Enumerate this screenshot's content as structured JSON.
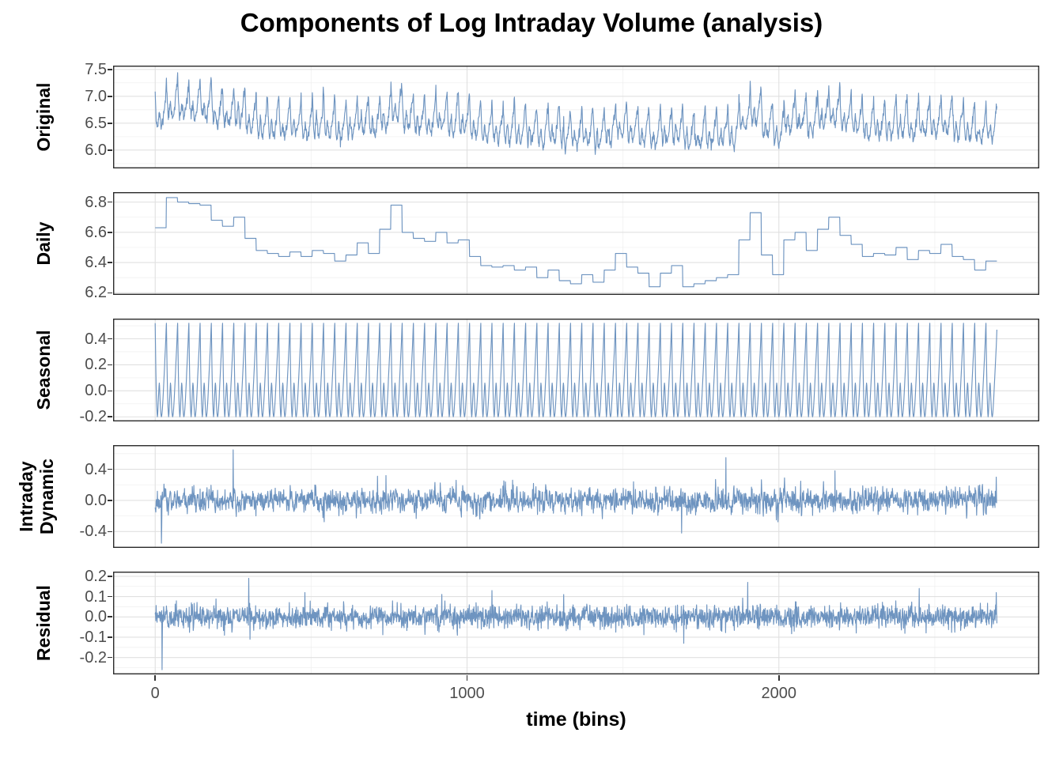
{
  "chart_data": {
    "type": "line",
    "title": "Components of Log Intraday Volume (analysis)",
    "xlabel": "time (bins)",
    "style": {
      "line_color": "#6E94C0",
      "panel_border_color": "#2b2b2b",
      "grid_major_color": "#e0e0e0",
      "grid_minor_color": "#f0f0f0",
      "tick_label_color": "#4d4d4d",
      "tick_mark_color": "#333333",
      "panel_background": "#ffffff"
    },
    "x": {
      "n_bins": 2700,
      "bins_per_day": 36,
      "lim": [
        -135,
        2835
      ],
      "ticks": [
        {
          "v": 0,
          "label": "0"
        },
        {
          "v": 1000,
          "label": "1000"
        },
        {
          "v": 2000,
          "label": "2000"
        }
      ],
      "minor": [
        500,
        1500,
        2500
      ],
      "grid": true
    },
    "daily_values": [
      6.63,
      6.83,
      6.8,
      6.79,
      6.78,
      6.68,
      6.64,
      6.7,
      6.56,
      6.48,
      6.46,
      6.44,
      6.47,
      6.44,
      6.48,
      6.46,
      6.41,
      6.45,
      6.53,
      6.46,
      6.62,
      6.78,
      6.6,
      6.56,
      6.54,
      6.6,
      6.53,
      6.55,
      6.44,
      6.38,
      6.37,
      6.38,
      6.35,
      6.37,
      6.3,
      6.35,
      6.28,
      6.26,
      6.32,
      6.27,
      6.35,
      6.46,
      6.37,
      6.33,
      6.24,
      6.33,
      6.38,
      6.24,
      6.26,
      6.28,
      6.3,
      6.32,
      6.55,
      6.73,
      6.45,
      6.32,
      6.55,
      6.6,
      6.48,
      6.62,
      6.7,
      6.58,
      6.52,
      6.44,
      6.46,
      6.45,
      6.5,
      6.42,
      6.48,
      6.46,
      6.52,
      6.44,
      6.42,
      6.35,
      6.41
    ],
    "seasonal_profile": [
      0.52,
      0.35,
      0.18,
      0.05,
      -0.05,
      -0.12,
      -0.17,
      -0.2,
      -0.18,
      -0.13,
      -0.07,
      -0.02,
      0.03,
      0.06,
      0.04,
      -0.02,
      -0.08,
      -0.13,
      -0.17,
      -0.19,
      -0.2,
      -0.19,
      -0.17,
      -0.14,
      -0.1,
      -0.06,
      -0.01,
      0.04,
      0.09,
      0.14,
      0.19,
      0.24,
      0.29,
      0.34,
      0.4,
      0.47
    ],
    "panels": [
      {
        "id": "original",
        "label_lines": [
          "Original"
        ],
        "series": "composite",
        "ylim": [
          5.66,
          7.57
        ],
        "yticks": [
          {
            "v": 6.0,
            "label": "6.0"
          },
          {
            "v": 6.5,
            "label": "6.5"
          },
          {
            "v": 7.0,
            "label": "7.0"
          },
          {
            "v": 7.5,
            "label": "7.5"
          }
        ],
        "noise": {
          "seed": 11,
          "phi": 0.3,
          "sd": 0.055
        },
        "spikes": [
          {
            "bin": 255,
            "v": 0.1
          },
          {
            "bin": 1310,
            "v": 0.28
          },
          {
            "bin": 1730,
            "v": -0.32
          },
          {
            "bin": 2120,
            "v": 0.26
          },
          {
            "bin": 2697,
            "v": 0.15
          }
        ]
      },
      {
        "id": "daily",
        "label_lines": [
          "Daily"
        ],
        "series": "daily_step",
        "ylim": [
          6.186,
          6.866
        ],
        "yticks": [
          {
            "v": 6.2,
            "label": "6.2"
          },
          {
            "v": 6.4,
            "label": "6.4"
          },
          {
            "v": 6.6,
            "label": "6.6"
          },
          {
            "v": 6.8,
            "label": "6.8"
          }
        ],
        "noise": null,
        "spikes": []
      },
      {
        "id": "seasonal",
        "label_lines": [
          "Seasonal"
        ],
        "series": "seasonal_repeat",
        "ylim": [
          -0.235,
          0.555
        ],
        "yticks": [
          {
            "v": -0.2,
            "label": "-0.2"
          },
          {
            "v": 0.0,
            "label": "0.0"
          },
          {
            "v": 0.2,
            "label": "0.2"
          },
          {
            "v": 0.4,
            "label": "0.4"
          }
        ],
        "noise": null,
        "spikes": []
      },
      {
        "id": "intraday-dynamic",
        "label_lines": [
          "Intraday",
          "Dynamic"
        ],
        "series": "noise",
        "ylim": [
          -0.61,
          0.71
        ],
        "yticks": [
          {
            "v": -0.4,
            "label": "-0.4"
          },
          {
            "v": 0.0,
            "label": "0.0"
          },
          {
            "v": 0.4,
            "label": "0.4"
          }
        ],
        "noise": {
          "seed": 21,
          "phi": 0.35,
          "sd": 0.075
        },
        "spikes": [
          {
            "bin": 2,
            "v": -0.15
          },
          {
            "bin": 20,
            "v": -0.55
          },
          {
            "bin": 21,
            "v": -0.33
          },
          {
            "bin": 250,
            "v": 0.65
          },
          {
            "bin": 740,
            "v": 0.32
          },
          {
            "bin": 1688,
            "v": -0.42
          },
          {
            "bin": 1830,
            "v": 0.55
          },
          {
            "bin": 2180,
            "v": 0.38
          },
          {
            "bin": 2697,
            "v": 0.3
          }
        ]
      },
      {
        "id": "residual",
        "label_lines": [
          "Residual"
        ],
        "series": "noise",
        "ylim": [
          -0.283,
          0.223
        ],
        "yticks": [
          {
            "v": -0.2,
            "label": "-0.2"
          },
          {
            "v": -0.1,
            "label": "-0.1"
          },
          {
            "v": 0.0,
            "label": "0.0"
          },
          {
            "v": 0.1,
            "label": "0.1"
          },
          {
            "v": 0.2,
            "label": "0.2"
          }
        ],
        "noise": {
          "seed": 31,
          "phi": 0.08,
          "sd": 0.028
        },
        "spikes": [
          {
            "bin": 22,
            "v": -0.26
          },
          {
            "bin": 300,
            "v": 0.19
          },
          {
            "bin": 304,
            "v": -0.11
          },
          {
            "bin": 480,
            "v": 0.12
          },
          {
            "bin": 1080,
            "v": 0.13
          },
          {
            "bin": 1310,
            "v": 0.11
          },
          {
            "bin": 1695,
            "v": -0.13
          },
          {
            "bin": 1900,
            "v": 0.17
          },
          {
            "bin": 2450,
            "v": 0.14
          },
          {
            "bin": 2697,
            "v": 0.12
          }
        ]
      }
    ]
  }
}
